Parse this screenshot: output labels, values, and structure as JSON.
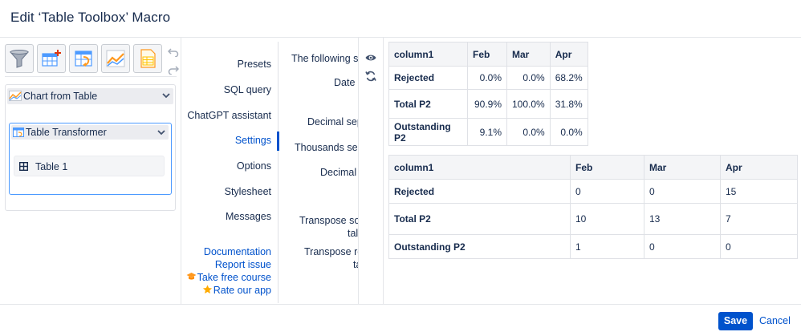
{
  "dialog": {
    "title": "Edit ‘Table Toolbox’ Macro"
  },
  "toolbar": {
    "tools": [
      {
        "icon": "filter-funnel-icon"
      },
      {
        "icon": "table-add-icon"
      },
      {
        "icon": "table-transform-icon"
      },
      {
        "icon": "line-chart-icon"
      },
      {
        "icon": "spreadsheet-icon"
      }
    ],
    "undo_icon": "undo-icon",
    "redo_icon": "redo-icon"
  },
  "macro_tree": {
    "chart_select_label": "Chart from Table",
    "transformer_label": "Table Transformer",
    "table_item_label": "Table 1"
  },
  "nav": {
    "items": [
      {
        "label": "Presets"
      },
      {
        "label": "SQL query"
      },
      {
        "label": "ChatGPT assistant"
      },
      {
        "label": "Settings",
        "active": true
      },
      {
        "label": "Options"
      },
      {
        "label": "Stylesheet"
      },
      {
        "label": "Messages"
      }
    ],
    "links": {
      "documentation": "Documentation",
      "report_issue": "Report issue",
      "take_course": "Take free course",
      "rate_app": "Rate our app"
    }
  },
  "settings": {
    "following_label": "The following se",
    "date_label": "Date f",
    "decimal_sep_label": "Decimal sep",
    "thousands_sep_label": "Thousands sep",
    "decimal_p_label": "Decimal p",
    "transpose_source_line1": "Transpose sou",
    "transpose_source_line2": "tal",
    "transpose_result_line1": "Transpose re",
    "transpose_result_line2": "ta"
  },
  "preview_table_1": {
    "headers": [
      "column1",
      "Feb",
      "Mar",
      "Apr"
    ],
    "rows": [
      [
        "Rejected",
        "0.0%",
        "0.0%",
        "68.2%"
      ],
      [
        "Total P2",
        "90.9%",
        "100.0%",
        "31.8%"
      ],
      [
        "Outstanding P2",
        "9.1%",
        "0.0%",
        "0.0%"
      ]
    ]
  },
  "preview_table_2": {
    "headers": [
      "column1",
      "Feb",
      "Mar",
      "Apr"
    ],
    "rows": [
      [
        "Rejected",
        "0",
        "0",
        "15"
      ],
      [
        "Total P2",
        "10",
        "13",
        "7"
      ],
      [
        "Outstanding P2",
        "1",
        "0",
        "0"
      ]
    ]
  },
  "footer": {
    "save_label": "Save",
    "cancel_label": "Cancel"
  },
  "colors": {
    "accent": "#0052cc",
    "focus": "#4c9aff",
    "text": "#172b4d",
    "border": "#dfe1e6"
  }
}
